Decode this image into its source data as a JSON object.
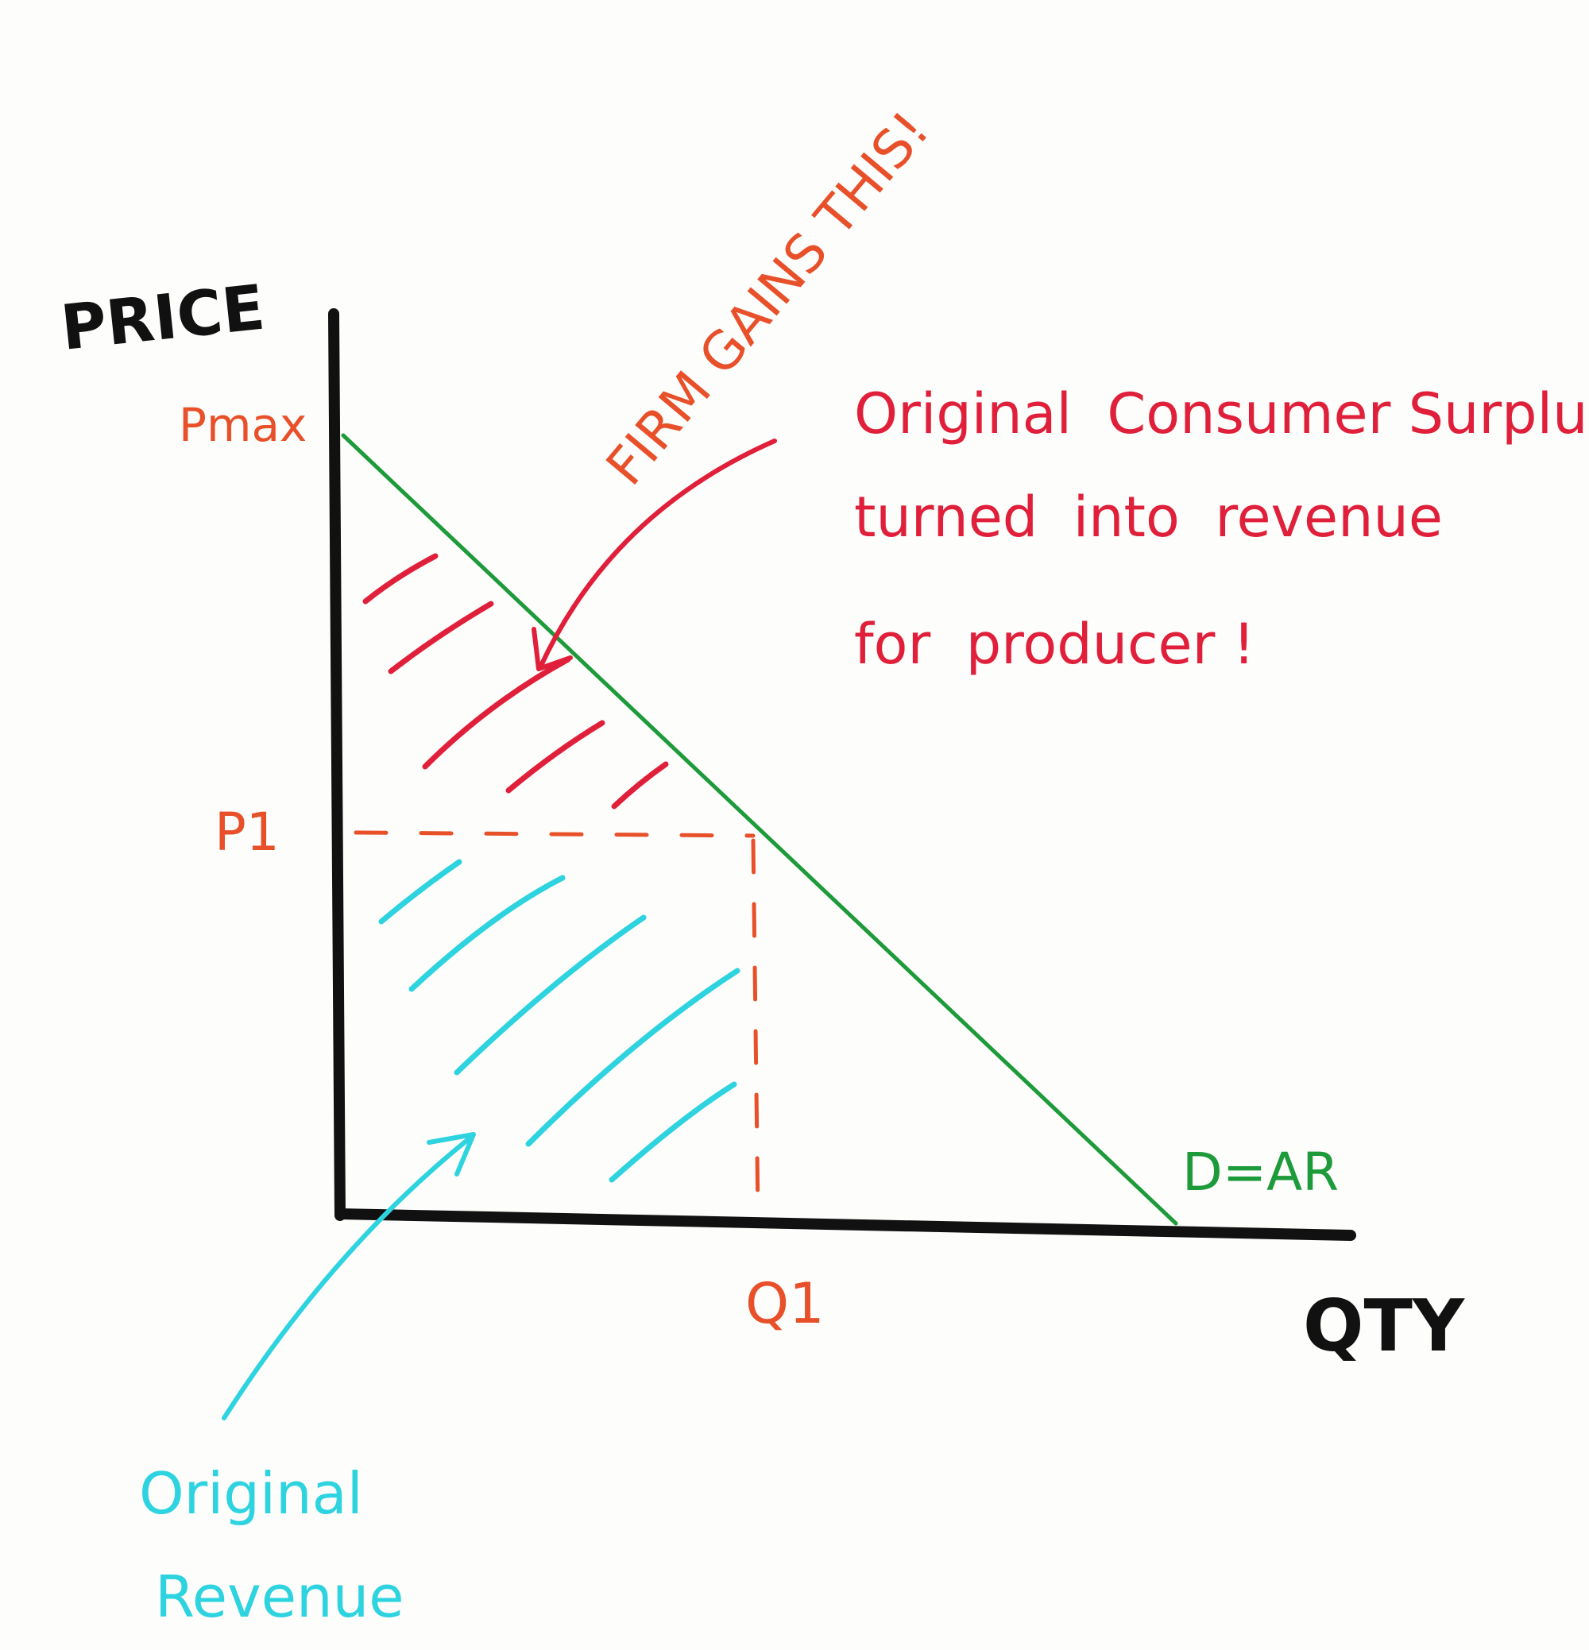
{
  "axes": {
    "y_label": "PRICE",
    "x_label": "QTY"
  },
  "levels": {
    "pmax": "Pmax",
    "p1": "P1",
    "q1": "Q1"
  },
  "demand_label": "D=AR",
  "annotations": {
    "firm_gains": "FIRM GAINS THIS!",
    "consumer_surplus_lines": [
      "Original  Consumer Surplus",
      "turned  into  revenue",
      "for  producer !"
    ],
    "original_revenue_lines": [
      "Original",
      "Revenue"
    ]
  },
  "colors": {
    "axis": "#111111",
    "demand": "#1d9a3a",
    "levels": "#e8502a",
    "surplus": "#e0203a",
    "revenue": "#2ed3e0"
  }
}
